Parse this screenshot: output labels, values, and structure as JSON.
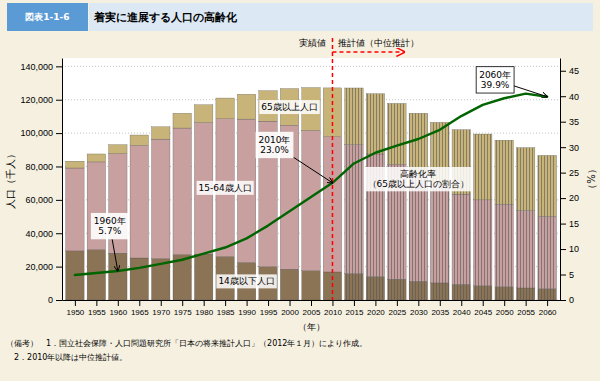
{
  "chart_data": {
    "type": "bar",
    "stacked": true,
    "grid": true,
    "title": "着実に進展する人口の高齢化",
    "xlabel": "（年）",
    "ylabel": "人口（千人）",
    "y2label": "（%）",
    "x": [
      1950,
      1955,
      1960,
      1965,
      1970,
      1975,
      1980,
      1985,
      1990,
      1995,
      2000,
      2005,
      2010,
      2015,
      2020,
      2025,
      2030,
      2035,
      2040,
      2045,
      2050,
      2055,
      2060
    ],
    "xlim": [
      1947,
      2063
    ],
    "xticks": [
      1950,
      1955,
      1960,
      1965,
      1970,
      1975,
      1980,
      1985,
      1990,
      1995,
      2000,
      2005,
      2010,
      2015,
      2020,
      2025,
      2030,
      2035,
      2040,
      2045,
      2050,
      2055,
      2060
    ],
    "ylim": [
      0,
      145000
    ],
    "yticks": [
      0,
      {
        "value": 20000,
        "label": "20,000"
      },
      {
        "value": 40000,
        "label": "40,000"
      },
      {
        "value": 60000,
        "label": "60,000"
      },
      {
        "value": 80000,
        "label": "80,000"
      },
      {
        "value": 100000,
        "label": "100,000"
      },
      {
        "value": 120000,
        "label": "120,000"
      },
      {
        "value": 140000,
        "label": "140,000"
      }
    ],
    "y2lim": [
      0,
      47.5
    ],
    "y2ticks": [
      0,
      5,
      10,
      15,
      20,
      25,
      30,
      35,
      40,
      45
    ],
    "series": [
      {
        "name": "14歳以下人口",
        "color": "#8B7355",
        "values": [
          29428,
          30123,
          28067,
          25166,
          24823,
          27221,
          27507,
          26033,
          22486,
          19900,
          18472,
          17521,
          16803,
          15887,
          14073,
          12457,
          11227,
          10243,
          9388,
          8590,
          7912,
          7227,
          6773
        ]
      },
      {
        "name": "15-64歳人口",
        "color": "#C8A0A0",
        "values": [
          49658,
          52600,
          59647,
          67444,
          71566,
          75807,
          78835,
          82506,
          85904,
          87261,
          86220,
          84093,
          81032,
          77282,
          73408,
          68754,
          63813,
          58919,
          54007,
          51407,
          49433,
          46390,
          43318
        ]
      },
      {
        "name": "65歳以上人口",
        "color": "#C8B478",
        "values": [
          4109,
          4769,
          5350,
          6236,
          7393,
          8865,
          10647,
          12468,
          14895,
          18261,
          22005,
          25672,
          29246,
          33866,
          36124,
          36573,
          36849,
          37268,
          38678,
          39438,
          38406,
          37679,
          36550
        ]
      },
      {
        "name": "高齢化率\n（65歳以上人口の割合）",
        "type": "line",
        "axis": "y2",
        "color": "#006400",
        "values": [
          4.9,
          5.3,
          5.7,
          6.3,
          7.1,
          7.9,
          9.1,
          10.3,
          12.1,
          14.6,
          17.4,
          20.2,
          23.0,
          26.8,
          28.9,
          30.3,
          31.6,
          33.4,
          36.1,
          38.3,
          39.6,
          40.5,
          39.9
        ]
      }
    ],
    "annotations": [
      {
        "type": "badge",
        "text": "図表1-1-6"
      },
      {
        "type": "vline",
        "x": 2010,
        "color": "red",
        "left_label": "実績値",
        "right_label": "推計値（中位推計）"
      },
      {
        "type": "point",
        "text": "2060年\n39.9%",
        "x": 2060,
        "y": 39.9,
        "axis": "y2"
      },
      {
        "type": "point",
        "text": "1960年\n5.7%",
        "x": 1960,
        "y": 5.7,
        "axis": "y2"
      },
      {
        "type": "point",
        "text": "2010年\n23.0%",
        "x": 2010,
        "y": 23.0,
        "axis": "y2"
      }
    ],
    "notes": [
      "（備考）　1．国立社会保障・人口問題研究所「日本の将来推計人口」（2012年１月）により作成。",
      "　2．2010年以降は中位推計値。"
    ]
  }
}
